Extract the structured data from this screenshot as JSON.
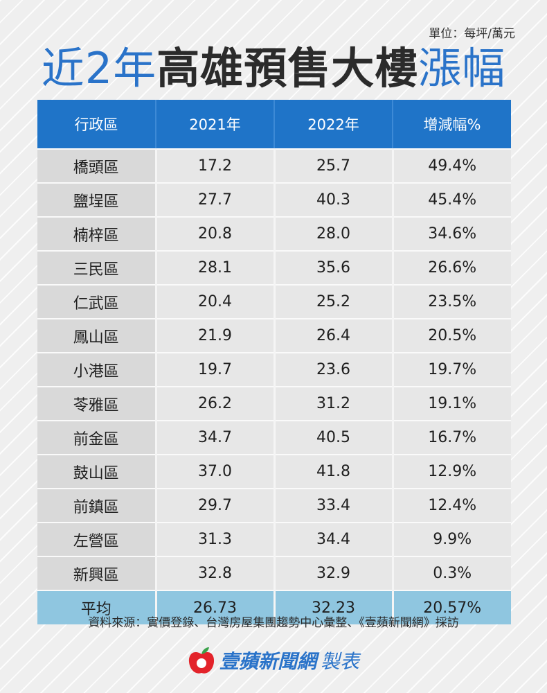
{
  "unit": "單位：每坪/萬元",
  "title": {
    "part1": "近2年",
    "part2": "高雄預售大樓",
    "part3": "漲幅"
  },
  "chart_data": {
    "type": "table",
    "columns": [
      "行政區",
      "2021年",
      "2022年",
      "增減幅%"
    ],
    "rows": [
      [
        "橋頭區",
        "17.2",
        "25.7",
        "49.4%"
      ],
      [
        "鹽埕區",
        "27.7",
        "40.3",
        "45.4%"
      ],
      [
        "楠梓區",
        "20.8",
        "28.0",
        "34.6%"
      ],
      [
        "三民區",
        "28.1",
        "35.6",
        "26.6%"
      ],
      [
        "仁武區",
        "20.4",
        "25.2",
        "23.5%"
      ],
      [
        "鳳山區",
        "21.9",
        "26.4",
        "20.5%"
      ],
      [
        "小港區",
        "19.7",
        "23.6",
        "19.7%"
      ],
      [
        "苓雅區",
        "26.2",
        "31.2",
        "19.1%"
      ],
      [
        "前金區",
        "34.7",
        "40.5",
        "16.7%"
      ],
      [
        "鼓山區",
        "37.0",
        "41.8",
        "12.9%"
      ],
      [
        "前鎮區",
        "29.7",
        "33.4",
        "12.4%"
      ],
      [
        "左營區",
        "31.3",
        "34.4",
        "9.9%"
      ],
      [
        "新興區",
        "32.8",
        "32.9",
        "0.3%"
      ]
    ],
    "average": [
      "平均",
      "26.73",
      "32.23",
      "20.57%"
    ]
  },
  "source": "資料來源：實價登錄、台灣房屋集團趨勢中心彙整、《壹蘋新聞網》採訪",
  "brand": {
    "name": "壹蘋新聞網",
    "suffix": "製表",
    "icon": "apple-icon"
  },
  "colors": {
    "header": "#1f74c8",
    "title_blue": "#2a73c9",
    "average_row": "#8fc6e0"
  }
}
